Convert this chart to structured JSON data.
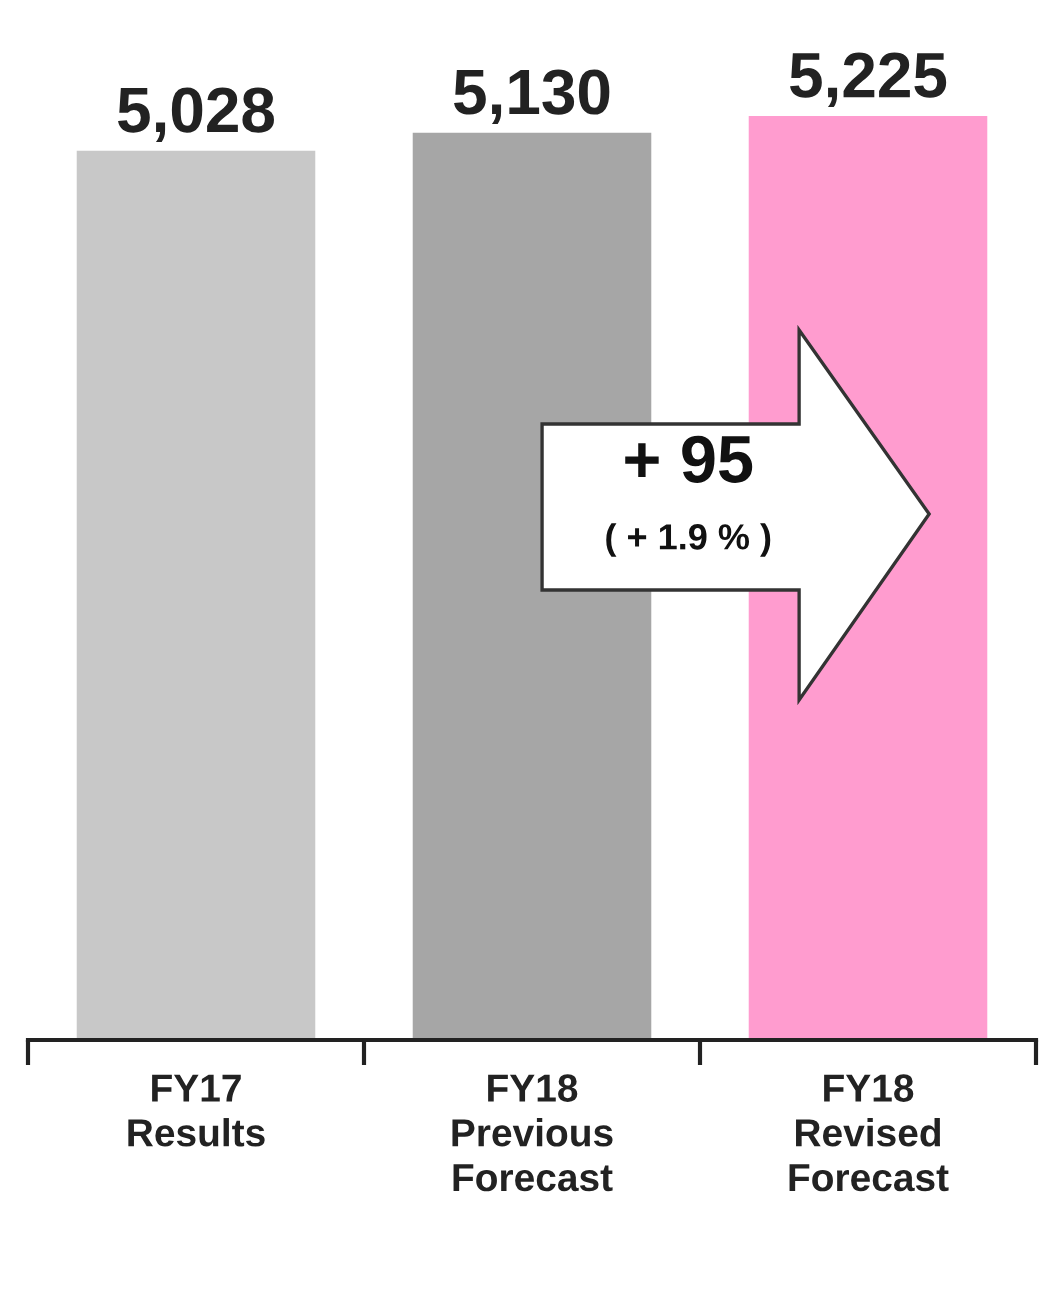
{
  "chart_data": {
    "type": "bar",
    "categories": [
      "FY17\nResults",
      "FY18\nPrevious\nForecast",
      "FY18\nRevised\nForecast"
    ],
    "values": [
      5028,
      5130,
      5225
    ],
    "colors": [
      "#c8c8c8",
      "#a6a6a6",
      "#ff9ccf"
    ],
    "value_labels": [
      "5,028",
      "5,130",
      "5,225"
    ],
    "annotations": [
      "+ 95",
      "( + 1.9 % )"
    ]
  }
}
